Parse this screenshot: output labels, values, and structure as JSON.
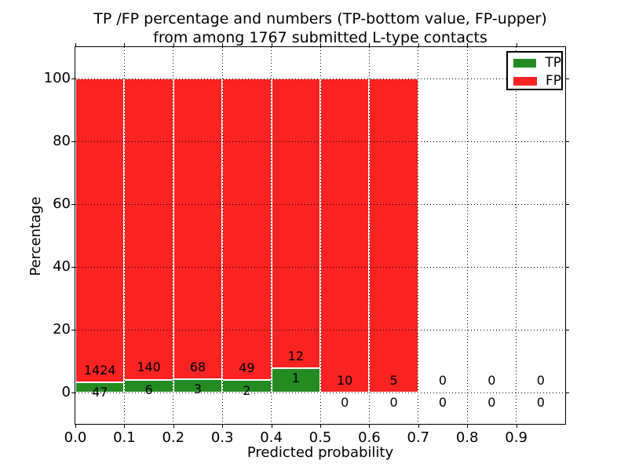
{
  "chart_data": {
    "type": "bar",
    "stacked": true,
    "normalized": "percent_of_bin_total",
    "title_lines": [
      "TP /FP percentage and numbers (TP-bottom value, FP-upper)",
      "from among 1767 submitted L-type contacts"
    ],
    "total_submitted_contacts": 1767,
    "xlabel": "Predicted probability",
    "ylabel": "Percentage",
    "xlim": [
      0.0,
      1.0
    ],
    "ylim": [
      -10,
      110
    ],
    "xtick_labels": [
      "0.0",
      "0.1",
      "0.2",
      "0.3",
      "0.4",
      "0.5",
      "0.6",
      "0.7",
      "0.8",
      "0.9"
    ],
    "ytick_values": [
      0,
      20,
      40,
      60,
      80,
      100
    ],
    "bin_width": 0.1,
    "categories": [
      "0.0-0.1",
      "0.1-0.2",
      "0.2-0.3",
      "0.3-0.4",
      "0.4-0.5",
      "0.5-0.6",
      "0.6-0.7",
      "0.7-0.8",
      "0.8-0.9",
      "0.9-1.0"
    ],
    "series": [
      {
        "name": "TP",
        "color": "#228b22",
        "counts": [
          47,
          6,
          3,
          2,
          1,
          0,
          0,
          0,
          0,
          0
        ]
      },
      {
        "name": "FP",
        "color": "#fb2222",
        "counts": [
          1424,
          140,
          68,
          49,
          12,
          10,
          5,
          0,
          0,
          0
        ]
      }
    ],
    "tp_pct_approx": [
      3.2,
      4.1,
      4.2,
      3.9,
      7.7,
      0.0,
      0.0,
      null,
      null,
      null
    ],
    "grid": {
      "style": "dotted",
      "color": "#000000",
      "drawn_over_bars": true
    },
    "legend": {
      "position": "upper right",
      "entries": [
        "TP",
        "FP"
      ]
    },
    "bar_edge_color": "#ffffff",
    "text_color": "#000000"
  }
}
